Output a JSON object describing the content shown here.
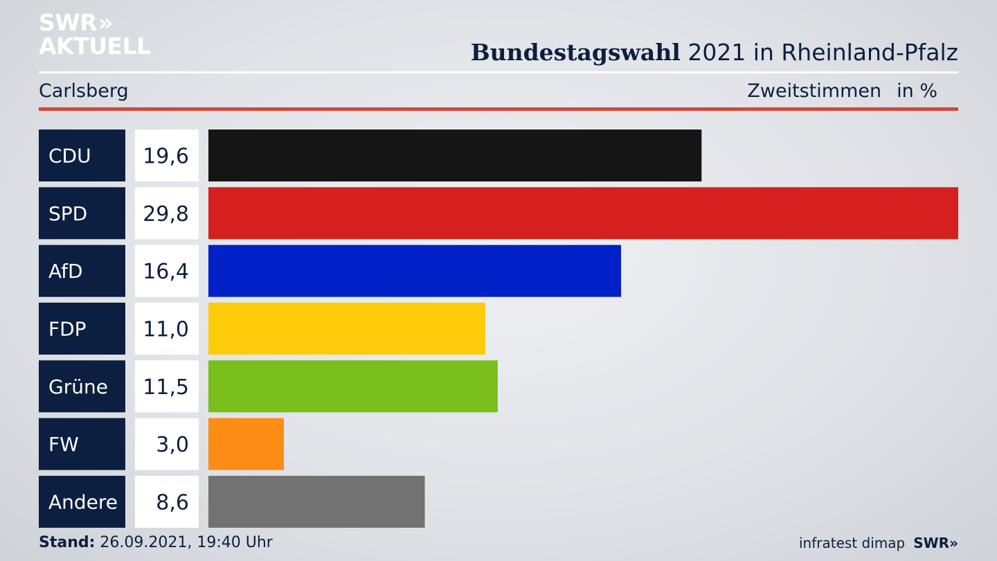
{
  "brand": {
    "line1": "SWR",
    "line2": "AKTUELL",
    "chevrons": "»"
  },
  "header": {
    "title_bold": "Bundestagswahl",
    "title_rest": " 2021 in Rheinland-Pfalz"
  },
  "subheader": {
    "location": "Carlsberg",
    "measure": "Zweitstimmen",
    "unit": "in %"
  },
  "chart_data": {
    "type": "bar",
    "orientation": "horizontal",
    "categories": [
      "CDU",
      "SPD",
      "AfD",
      "FDP",
      "Grüne",
      "FW",
      "Andere"
    ],
    "values": [
      19.6,
      29.8,
      16.4,
      11.0,
      11.5,
      3.0,
      8.6
    ],
    "value_labels": [
      "19,6",
      "29,8",
      "16,4",
      "11,0",
      "11,5",
      "3,0",
      "8,6"
    ],
    "colors": [
      "#151515",
      "#d62020",
      "#0021c7",
      "#fdcc0a",
      "#7abf1c",
      "#fb8c16",
      "#727272"
    ],
    "xlim": [
      0,
      29.8
    ]
  },
  "footer": {
    "stand_label": "Stand:",
    "stand_value": " 26.09.2021, 19:40 Uhr",
    "source": "infratest dimap",
    "brand": "SWR",
    "brand_chevrons": "»"
  }
}
